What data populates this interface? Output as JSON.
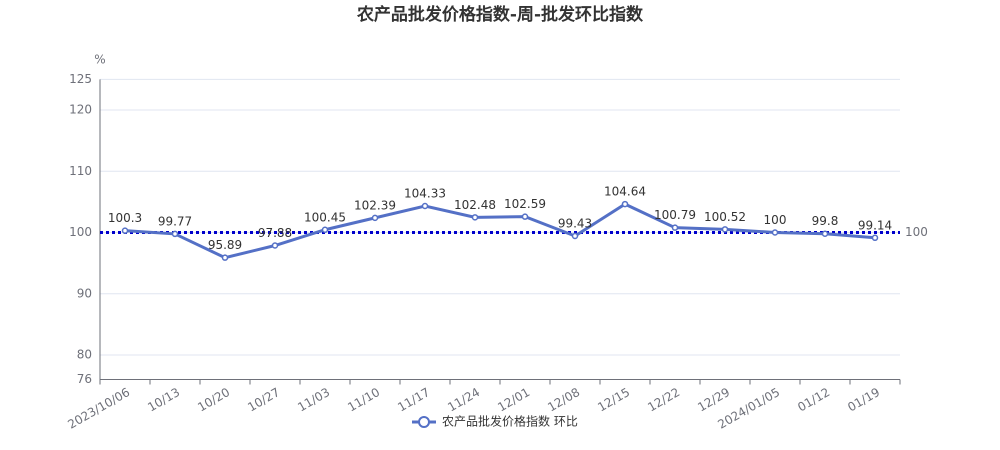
{
  "chart_data": {
    "type": "line",
    "title": "农产品批发价格指数-周-批发环比指数",
    "y_unit": "%",
    "categories": [
      "2023/10/06",
      "10/13",
      "10/20",
      "10/27",
      "11/03",
      "11/10",
      "11/17",
      "11/24",
      "12/01",
      "12/08",
      "12/15",
      "12/22",
      "12/29",
      "2024/01/05",
      "01/12",
      "01/19"
    ],
    "series": [
      {
        "name": "农产品批发价格指数 环比",
        "color": "#5470c6",
        "values": [
          100.3,
          99.77,
          95.89,
          97.88,
          100.45,
          102.39,
          104.33,
          102.48,
          102.59,
          99.43,
          104.64,
          100.79,
          100.52,
          100,
          99.8,
          99.14
        ]
      }
    ],
    "ylim": [
      76,
      125
    ],
    "yticks": [
      76,
      80,
      90,
      100,
      110,
      120,
      125
    ],
    "grid": true,
    "reference_line": {
      "value": 100,
      "color": "#0000cc"
    },
    "legend": "bottom"
  }
}
